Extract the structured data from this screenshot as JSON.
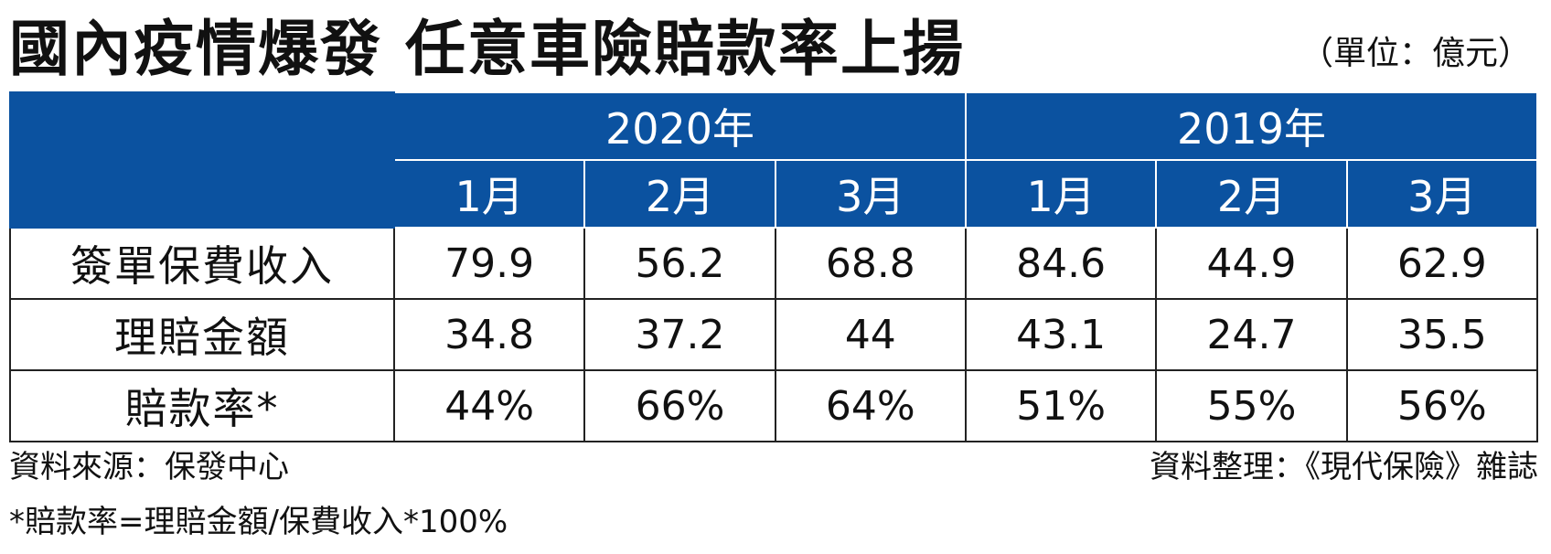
{
  "title": "國內疫情爆發 任意車險賠款率上揚",
  "unit": "（單位：億元）",
  "chart_data": {
    "type": "table",
    "years": [
      {
        "label": "2020年",
        "months": [
          "1月",
          "2月",
          "3月"
        ]
      },
      {
        "label": "2019年",
        "months": [
          "1月",
          "2月",
          "3月"
        ]
      }
    ],
    "rows": [
      {
        "label": "簽單保費收入",
        "values": [
          "79.9",
          "56.2",
          "68.8",
          "84.6",
          "44.9",
          "62.9"
        ]
      },
      {
        "label": "理賠金額",
        "values": [
          "34.8",
          "37.2",
          "44",
          "43.1",
          "24.7",
          "35.5"
        ]
      },
      {
        "label": "賠款率*",
        "values": [
          "44%",
          "66%",
          "64%",
          "51%",
          "55%",
          "56%"
        ]
      }
    ]
  },
  "footer": {
    "source_left": "資料來源：保發中心",
    "source_right": "資料整理：《現代保險》雜誌",
    "note": "*賠款率=理賠金額/保費收入*100%"
  }
}
